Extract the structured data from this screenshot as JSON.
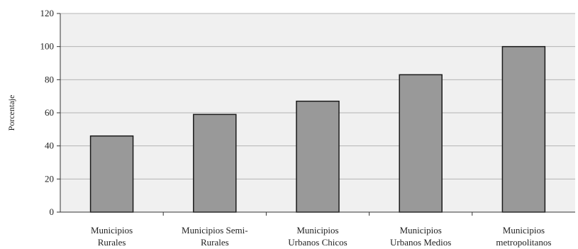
{
  "chart_data": {
    "type": "bar",
    "title": "",
    "xlabel": "",
    "ylabel": "Porcentaje",
    "ylim": [
      0,
      120
    ],
    "yticks": [
      0,
      20,
      40,
      60,
      80,
      100,
      120
    ],
    "grid": true,
    "categories": [
      [
        "Municipios",
        "Rurales"
      ],
      [
        "Municipios Semi-",
        "Rurales"
      ],
      [
        "Municipios",
        "Urbanos Chicos"
      ],
      [
        "Municipios",
        "Urbanos Medios"
      ],
      [
        "Municipios",
        "metropolitanos"
      ]
    ],
    "values": [
      46,
      59,
      67,
      83,
      100
    ],
    "colors": {
      "bar_fill": "#999999",
      "bar_stroke": "#1a1a1a",
      "plot_bg": "#f0f0f0",
      "grid": "#b5b5b5"
    }
  }
}
